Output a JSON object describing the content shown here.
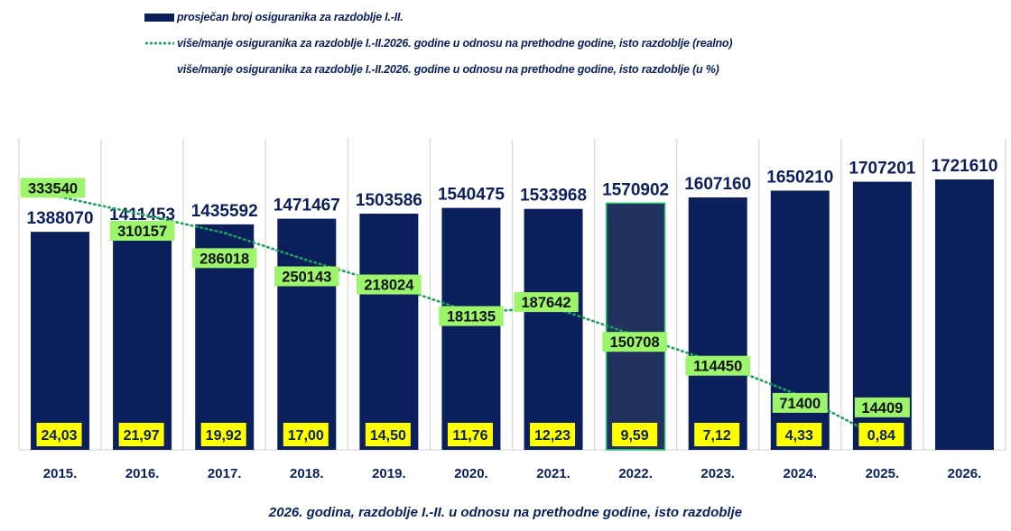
{
  "legend": {
    "items": [
      {
        "label": "prosječan broj osiguranika za razdoblje I.-II.",
        "kind": "bar"
      },
      {
        "label": "više/manje osiguranika za razdoblje I.-II.2026. godine u odnosu na prethodne godine, isto razdoblje (realno)",
        "kind": "line"
      },
      {
        "label": "više/manje osiguranika za razdoblje I.-II.2026. godine u odnosu na prethodne godine, isto razdoblje (u %)",
        "kind": "none"
      }
    ]
  },
  "caption": "2026. godina, razdoblje I.-II. u odnosu na prethodne godine, isto razdoblje",
  "colors": {
    "bar": "#0b1f5c",
    "bar_highlight": "#22325f",
    "highlight_border": "#2ecc71",
    "line": "#1aa35a",
    "line_label_bg": "#9cf56a",
    "percent_label_bg": "#ffff00",
    "text": "#0b1f5c",
    "grid": "#d9d9d9"
  },
  "chart_data": {
    "type": "bar",
    "title": "",
    "xlabel": "2026. godina, razdoblje I.-II. u odnosu na prethodne godine, isto razdoblje",
    "ylabel": "",
    "ylim": [
      0,
      2000000
    ],
    "y2lim": [
      0,
      410000
    ],
    "grid": "vertical",
    "legend_position": "top",
    "categories": [
      "2015.",
      "2016.",
      "2017.",
      "2018.",
      "2019.",
      "2020.",
      "2021.",
      "2022.",
      "2023.",
      "2024.",
      "2025.",
      "2026."
    ],
    "highlight_category": "2022.",
    "series": [
      {
        "name": "prosječan broj osiguranika za razdoblje I.-II.",
        "type": "bar",
        "values": [
          1388070,
          1411453,
          1435592,
          1471467,
          1503586,
          1540475,
          1533968,
          1570902,
          1607160,
          1650210,
          1707201,
          1721610
        ]
      },
      {
        "name": "više/manje osiguranika za razdoblje I.-II.2026. godine u odnosu na prethodne godine, isto razdoblje (realno)",
        "type": "line",
        "axis": "secondary",
        "values": [
          333540,
          310157,
          286018,
          250143,
          218024,
          181135,
          187642,
          150708,
          114450,
          71400,
          14409,
          null
        ]
      },
      {
        "name": "više/manje osiguranika za razdoblje I.-II.2026. godine u odnosu na prethodne godine, isto razdoblje (u %)",
        "type": "label",
        "values": [
          "24,03",
          "21,97",
          "19,92",
          "17,00",
          "14,50",
          "11,76",
          "12,23",
          "9,59",
          "7,12",
          "4,33",
          "0,84",
          null
        ]
      }
    ]
  }
}
